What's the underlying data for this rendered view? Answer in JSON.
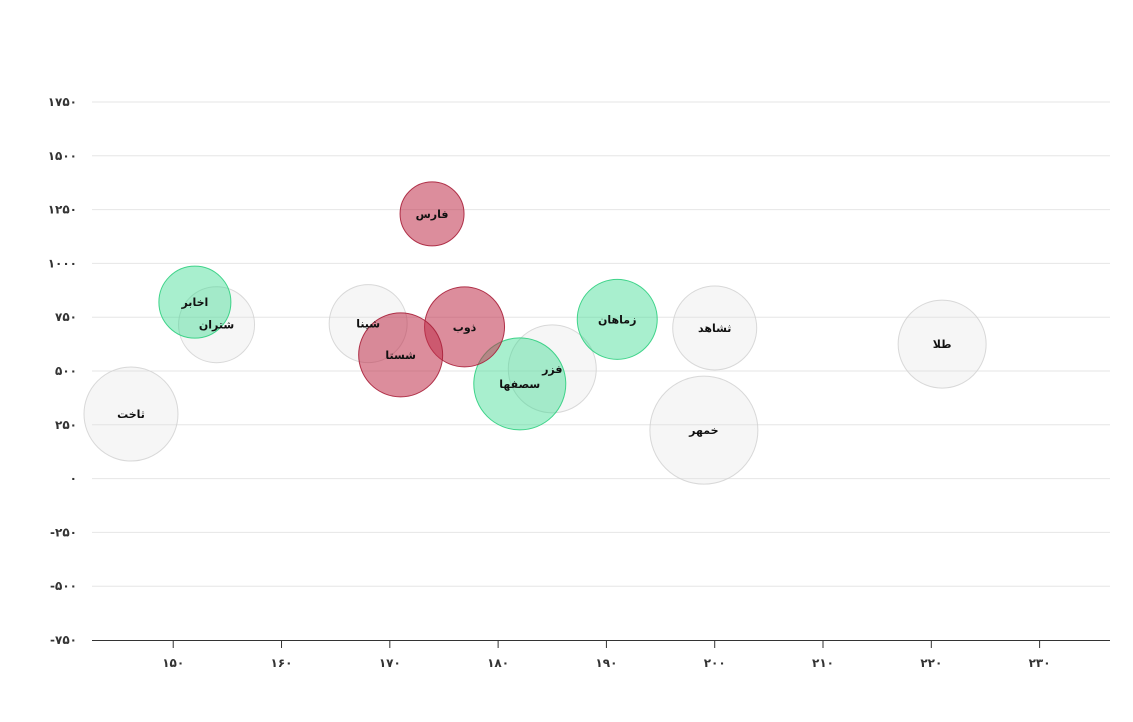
{
  "colors": {
    "positive": "#3fdc93",
    "negative": "#c0304a",
    "neutral": "#dddddd"
  },
  "chart_data": {
    "type": "scatter",
    "subtype": "bubble",
    "title": "",
    "xlabel": "",
    "ylabel": "",
    "xlim": [
      142.5,
      236.5
    ],
    "ylim": [
      -750,
      1750
    ],
    "x_ticks": [
      {
        "value": 150,
        "label": "۱۵۰"
      },
      {
        "value": 160,
        "label": "۱۶۰"
      },
      {
        "value": 170,
        "label": "۱۷۰"
      },
      {
        "value": 180,
        "label": "۱۸۰"
      },
      {
        "value": 190,
        "label": "۱۹۰"
      },
      {
        "value": 200,
        "label": "۲۰۰"
      },
      {
        "value": 210,
        "label": "۲۱۰"
      },
      {
        "value": 220,
        "label": "۲۲۰"
      },
      {
        "value": 230,
        "label": "۲۳۰"
      }
    ],
    "y_ticks": [
      {
        "value": 1750,
        "label": "۱۷۵۰"
      },
      {
        "value": 1500,
        "label": "۱۵۰۰"
      },
      {
        "value": 1250,
        "label": "۱۲۵۰"
      },
      {
        "value": 1000,
        "label": "۱۰۰۰"
      },
      {
        "value": 750,
        "label": "۷۵۰"
      },
      {
        "value": 500,
        "label": "۵۰۰"
      },
      {
        "value": 250,
        "label": "۲۵۰"
      },
      {
        "value": 0,
        "label": "۰"
      },
      {
        "value": -250,
        "label": "-۲۵۰"
      },
      {
        "value": -500,
        "label": "-۵۰۰"
      },
      {
        "value": -750,
        "label": "-۷۵۰"
      }
    ],
    "grid": true,
    "legend": "none",
    "points": [
      {
        "label": "ثاخت",
        "x": 146.1,
        "y": 300,
        "size": 47,
        "status": "neutral"
      },
      {
        "label": "شتران",
        "x": 154.0,
        "y": 715,
        "size": 38,
        "status": "neutral"
      },
      {
        "label": "شپنا",
        "x": 168.0,
        "y": 720,
        "size": 39,
        "status": "neutral"
      },
      {
        "label": "فزر",
        "x": 185.0,
        "y": 510,
        "size": 44,
        "status": "neutral"
      },
      {
        "label": "ثشاهد",
        "x": 200.0,
        "y": 700,
        "size": 42,
        "status": "neutral"
      },
      {
        "label": "خمهر",
        "x": 199.0,
        "y": 225,
        "size": 54,
        "status": "neutral"
      },
      {
        "label": "طلا",
        "x": 221.0,
        "y": 625,
        "size": 44,
        "status": "neutral"
      },
      {
        "label": "اخابر",
        "x": 152.0,
        "y": 820,
        "size": 36,
        "status": "positive"
      },
      {
        "label": "زماهان",
        "x": 191.0,
        "y": 740,
        "size": 40,
        "status": "positive"
      },
      {
        "label": "سصفها",
        "x": 182.0,
        "y": 440,
        "size": 46,
        "status": "positive"
      },
      {
        "label": "فارس",
        "x": 173.9,
        "y": 1230,
        "size": 32,
        "status": "negative"
      },
      {
        "label": "ذوب",
        "x": 176.9,
        "y": 705,
        "size": 40,
        "status": "negative"
      },
      {
        "label": "شستا",
        "x": 171.0,
        "y": 575,
        "size": 42,
        "status": "negative"
      }
    ]
  }
}
